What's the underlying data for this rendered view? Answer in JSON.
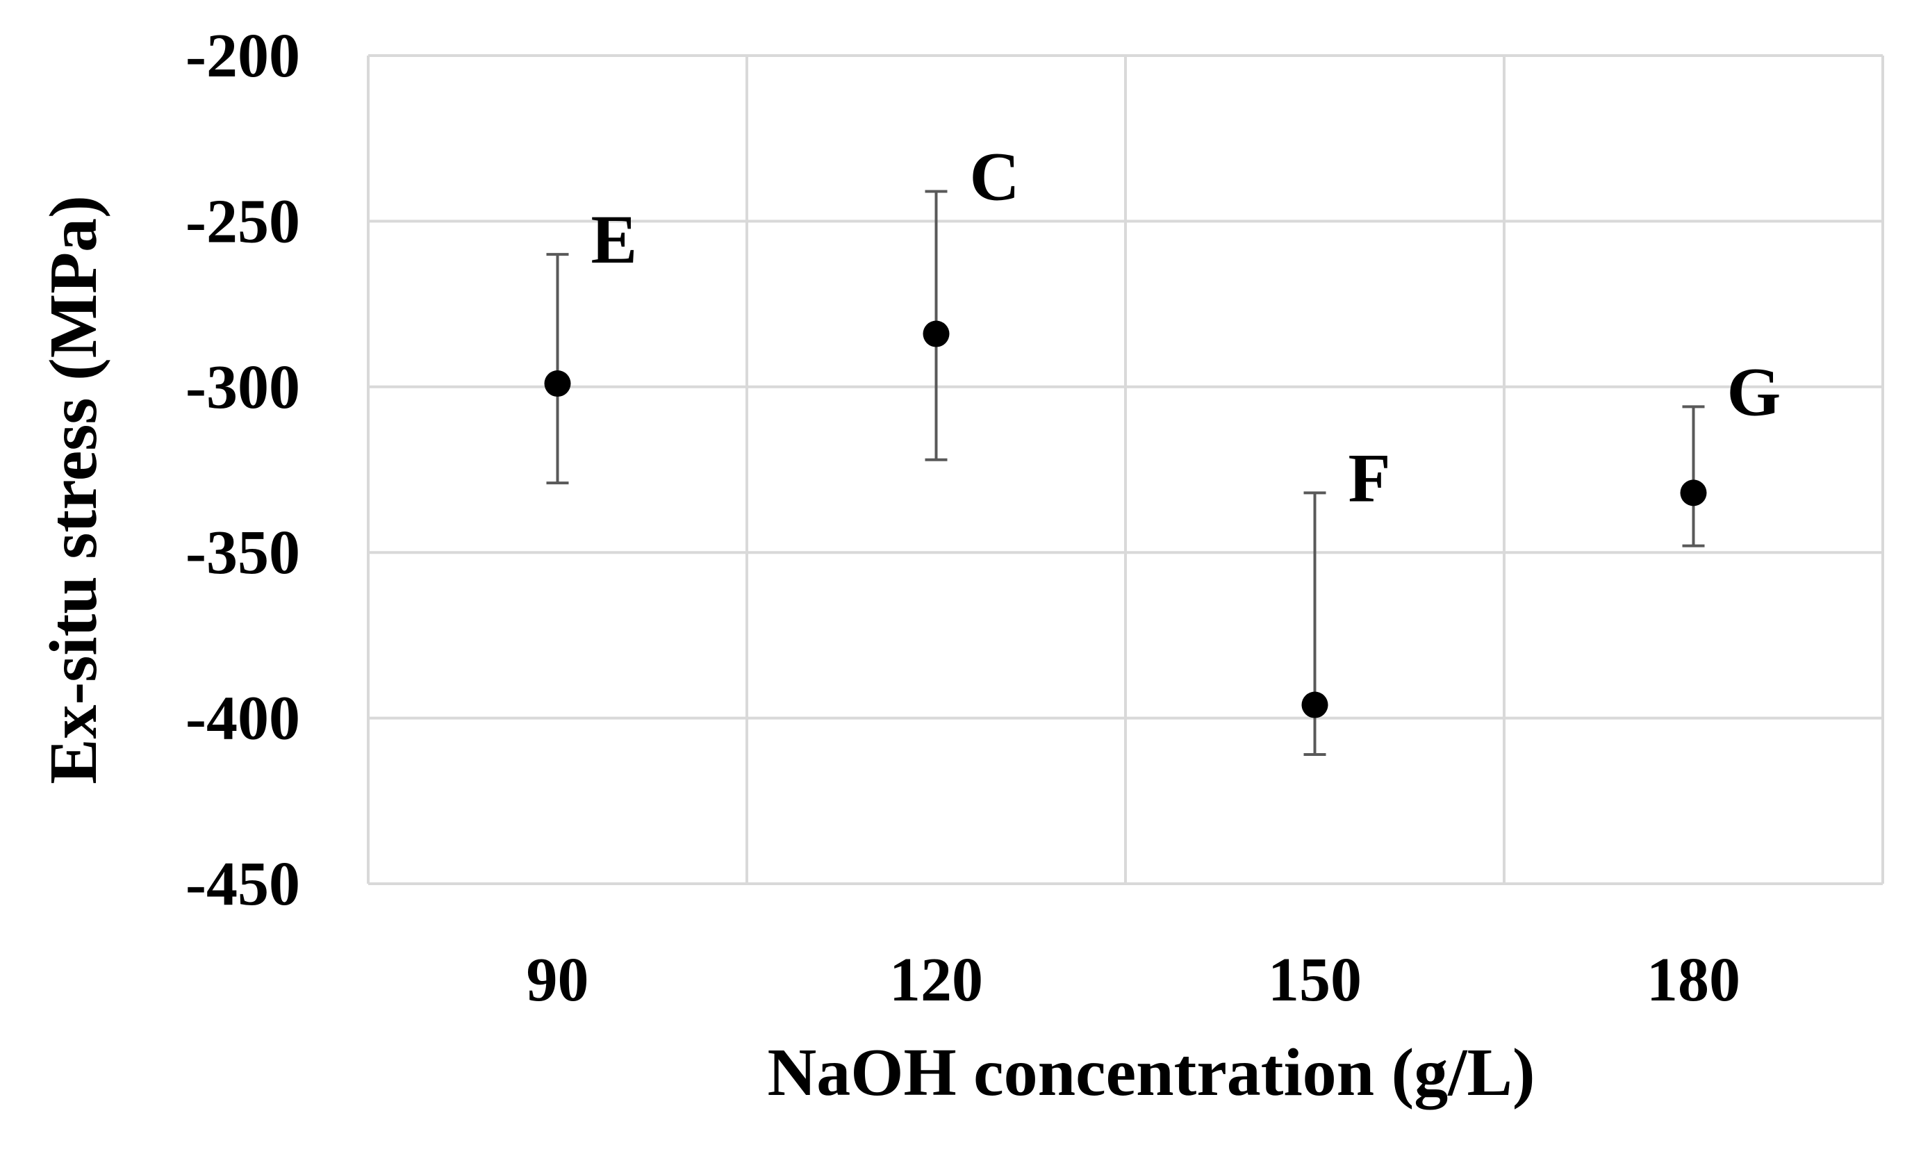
{
  "chart_data": {
    "type": "scatter",
    "title": "",
    "xlabel": "NaOH concentration (g/L)",
    "ylabel": "Ex-situ stress (MPa)",
    "categories": [
      "90",
      "120",
      "150",
      "180"
    ],
    "ylim": [
      -450,
      -200
    ],
    "yticks": [
      -200,
      -250,
      -300,
      -350,
      -400,
      -450
    ],
    "ytick_labels": [
      "-200",
      "-250",
      "-300",
      "-350",
      "-400",
      "-450"
    ],
    "grid": true,
    "series": [
      {
        "name": "Ex-situ stress",
        "points": [
          {
            "x": "90",
            "y": -299,
            "err_upper": -260,
            "err_lower": -329,
            "label": "E"
          },
          {
            "x": "120",
            "y": -284,
            "err_upper": -241,
            "err_lower": -322,
            "label": "C"
          },
          {
            "x": "150",
            "y": -396,
            "err_upper": -332,
            "err_lower": -411,
            "label": "F"
          },
          {
            "x": "180",
            "y": -332,
            "err_upper": -306,
            "err_lower": -348,
            "label": "G"
          }
        ]
      }
    ]
  },
  "colors": {
    "grid": "#d9d9d9",
    "marker": "#000000",
    "errorbar": "#595959",
    "text": "#000000"
  }
}
